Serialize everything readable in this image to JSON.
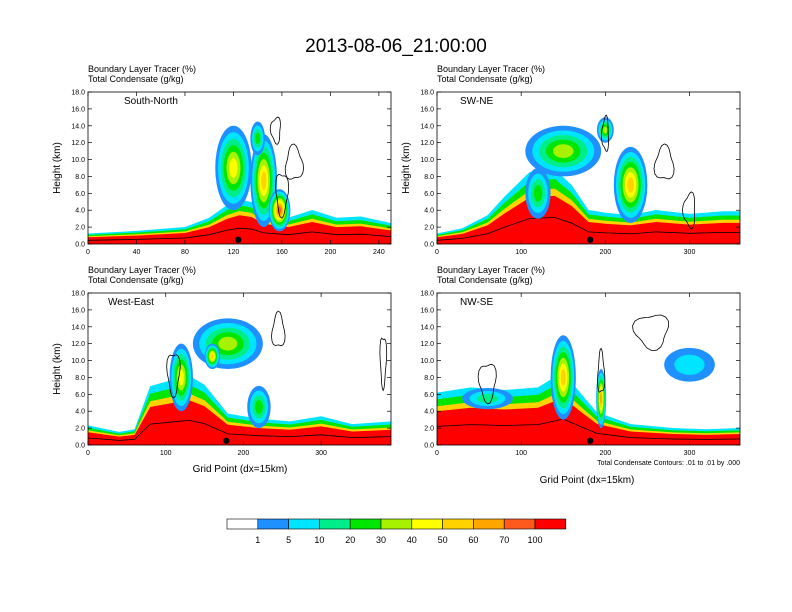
{
  "figure": {
    "title": "2013-08-06_21:00:00",
    "footnote": "Total Condensate Contours: .01 to .01 by .000"
  },
  "colors": {
    "levels": [
      "#ffffff",
      "#1e90ff",
      "#00e5ff",
      "#00ee8a",
      "#00e600",
      "#a6f200",
      "#ffff00",
      "#ffd200",
      "#ffa500",
      "#ff5a1e",
      "#ff0000"
    ],
    "contour": "#000000",
    "axis": "#000000"
  },
  "colorbar": {
    "labels": [
      "1",
      "5",
      "10",
      "20",
      "30",
      "40",
      "50",
      "60",
      "70",
      "100"
    ]
  },
  "chart_data": [
    {
      "type": "heatmap",
      "panel_label": "South-North",
      "left_string_1": "Boundary Layer Tracer   (%)",
      "left_string_2": "Total Condensate   (g/kg)",
      "ylabel": "Height (km)",
      "xlabel": "",
      "xlim": [
        0,
        250
      ],
      "ylim": [
        0,
        18
      ],
      "xticks": [
        0,
        40,
        80,
        120,
        160,
        200,
        240
      ],
      "yticks": [
        "0.0",
        "2.0",
        "4.0",
        "6.0",
        "8.0",
        "10.0",
        "12.0",
        "14.0",
        "16.0",
        "18.0"
      ],
      "bl_top": [
        [
          0,
          0.8
        ],
        [
          40,
          1.0
        ],
        [
          80,
          1.3
        ],
        [
          100,
          2.0
        ],
        [
          115,
          3.0
        ],
        [
          125,
          3.4
        ],
        [
          135,
          3.2
        ],
        [
          145,
          2.4
        ],
        [
          165,
          2.0
        ],
        [
          185,
          2.6
        ],
        [
          205,
          2.0
        ],
        [
          225,
          2.1
        ],
        [
          250,
          1.6
        ]
      ],
      "plumes": [
        {
          "x": 120,
          "y": 9.0,
          "w": 30,
          "h": 10.0,
          "peak": 6
        },
        {
          "x": 145,
          "y": 7.5,
          "w": 22,
          "h": 11.0,
          "peak": 7
        },
        {
          "x": 158,
          "y": 4.0,
          "w": 18,
          "h": 5.0,
          "peak": 9
        },
        {
          "x": 140,
          "y": 12.5,
          "w": 12,
          "h": 4.0,
          "peak": 4
        }
      ],
      "contours": [
        {
          "x": 170,
          "y": 9.5,
          "w": 14,
          "h": 4.0
        },
        {
          "x": 155,
          "y": 13.5,
          "w": 8,
          "h": 3.0
        },
        {
          "x": 160,
          "y": 6.0,
          "w": 10,
          "h": 5.0
        }
      ],
      "marker_x": 124
    },
    {
      "type": "heatmap",
      "panel_label": "SW-NE",
      "left_string_1": "Boundary Layer Tracer   (%)",
      "left_string_2": "Total Condensate   (g/kg)",
      "ylabel": "Height (km)",
      "xlabel": "",
      "xlim": [
        0,
        360
      ],
      "ylim": [
        0,
        18
      ],
      "xticks": [
        0,
        100,
        200,
        300
      ],
      "yticks": [
        "0.0",
        "2.0",
        "4.0",
        "6.0",
        "8.0",
        "10.0",
        "12.0",
        "14.0",
        "16.0",
        "18.0"
      ],
      "bl_top": [
        [
          0,
          0.8
        ],
        [
          30,
          1.2
        ],
        [
          60,
          2.2
        ],
        [
          80,
          3.6
        ],
        [
          110,
          5.5
        ],
        [
          140,
          5.7
        ],
        [
          160,
          4.5
        ],
        [
          180,
          2.6
        ],
        [
          200,
          2.4
        ],
        [
          230,
          2.2
        ],
        [
          260,
          2.6
        ],
        [
          300,
          2.3
        ],
        [
          340,
          2.5
        ],
        [
          360,
          2.5
        ]
      ],
      "plumes": [
        {
          "x": 150,
          "y": 11.0,
          "w": 90,
          "h": 6.0,
          "peak": 5
        },
        {
          "x": 230,
          "y": 7.0,
          "w": 40,
          "h": 9.0,
          "peak": 7
        },
        {
          "x": 120,
          "y": 6.0,
          "w": 30,
          "h": 6.0,
          "peak": 4
        },
        {
          "x": 200,
          "y": 13.5,
          "w": 20,
          "h": 3.0,
          "peak": 5
        }
      ],
      "contours": [
        {
          "x": 200,
          "y": 13.0,
          "w": 8,
          "h": 4.0
        },
        {
          "x": 270,
          "y": 9.5,
          "w": 22,
          "h": 4.0
        },
        {
          "x": 300,
          "y": 4.0,
          "w": 14,
          "h": 4.0
        }
      ],
      "marker_x": 182
    },
    {
      "type": "heatmap",
      "panel_label": "West-East",
      "left_string_1": "Boundary Layer Tracer   (%)",
      "left_string_2": "Total Condensate   (g/kg)",
      "ylabel": "Height (km)",
      "xlabel": "Grid Point (dx=15km)",
      "xlim": [
        0,
        390
      ],
      "ylim": [
        0,
        18
      ],
      "xticks": [
        0,
        100,
        200,
        300
      ],
      "yticks": [
        "0.0",
        "2.0",
        "4.0",
        "6.0",
        "8.0",
        "10.0",
        "12.0",
        "14.0",
        "16.0",
        "18.0"
      ],
      "bl_top": [
        [
          0,
          1.5
        ],
        [
          40,
          1.0
        ],
        [
          60,
          1.2
        ],
        [
          80,
          4.5
        ],
        [
          110,
          5.0
        ],
        [
          130,
          5.3
        ],
        [
          150,
          4.6
        ],
        [
          180,
          2.4
        ],
        [
          220,
          2.0
        ],
        [
          260,
          1.8
        ],
        [
          300,
          2.2
        ],
        [
          340,
          1.6
        ],
        [
          390,
          1.8
        ]
      ],
      "plumes": [
        {
          "x": 180,
          "y": 12.0,
          "w": 90,
          "h": 6.0,
          "peak": 5
        },
        {
          "x": 120,
          "y": 8.0,
          "w": 30,
          "h": 8.0,
          "peak": 6
        },
        {
          "x": 220,
          "y": 4.5,
          "w": 30,
          "h": 5.0,
          "peak": 4
        },
        {
          "x": 160,
          "y": 10.5,
          "w": 20,
          "h": 3.0,
          "peak": 7
        }
      ],
      "contours": [
        {
          "x": 110,
          "y": 8.5,
          "w": 16,
          "h": 5.0
        },
        {
          "x": 245,
          "y": 13.5,
          "w": 16,
          "h": 4.0
        },
        {
          "x": 380,
          "y": 10.0,
          "w": 8,
          "h": 6.0
        }
      ],
      "marker_x": 178
    },
    {
      "type": "heatmap",
      "panel_label": "NW-SE",
      "left_string_1": "Boundary Layer Tracer   (%)",
      "left_string_2": "Total Condensate   (g/kg)",
      "ylabel": "",
      "xlabel": "Grid Point (dx=15km)",
      "xlim": [
        0,
        360
      ],
      "ylim": [
        0,
        18
      ],
      "xticks": [
        0,
        100,
        200,
        300
      ],
      "yticks": [
        "0.0",
        "2.0",
        "4.0",
        "6.0",
        "8.0",
        "10.0",
        "12.0",
        "14.0",
        "16.0",
        "18.0"
      ],
      "bl_top": [
        [
          0,
          4.0
        ],
        [
          40,
          4.4
        ],
        [
          80,
          4.2
        ],
        [
          120,
          4.4
        ],
        [
          150,
          5.6
        ],
        [
          170,
          4.0
        ],
        [
          190,
          2.5
        ],
        [
          230,
          1.6
        ],
        [
          280,
          1.3
        ],
        [
          320,
          1.2
        ],
        [
          360,
          1.3
        ]
      ],
      "plumes": [
        {
          "x": 150,
          "y": 8.0,
          "w": 30,
          "h": 10.0,
          "peak": 7
        },
        {
          "x": 195,
          "y": 5.5,
          "w": 12,
          "h": 7.0,
          "peak": 8
        },
        {
          "x": 60,
          "y": 5.5,
          "w": 60,
          "h": 2.5,
          "peak": 3
        },
        {
          "x": 300,
          "y": 9.5,
          "w": 60,
          "h": 4.0,
          "peak": 1
        }
      ],
      "contours": [
        {
          "x": 255,
          "y": 13.5,
          "w": 40,
          "h": 4.0
        },
        {
          "x": 60,
          "y": 7.5,
          "w": 20,
          "h": 4.5
        },
        {
          "x": 195,
          "y": 8.5,
          "w": 8,
          "h": 5.0
        }
      ],
      "marker_x": 182
    }
  ]
}
